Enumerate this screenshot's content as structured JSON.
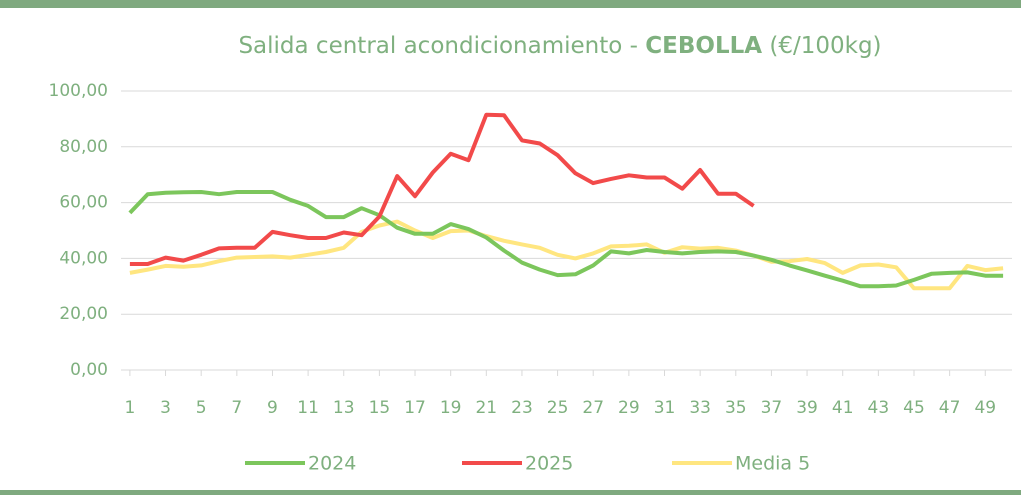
{
  "chart_data": {
    "type": "line",
    "title": [
      "Salida central acondicionamiento - ",
      "CEBOLLA",
      " (€/100kg)"
    ],
    "x": [
      1,
      2,
      3,
      4,
      5,
      6,
      7,
      8,
      9,
      10,
      11,
      12,
      13,
      14,
      15,
      16,
      17,
      18,
      19,
      20,
      21,
      22,
      23,
      24,
      25,
      26,
      27,
      28,
      29,
      30,
      31,
      32,
      33,
      34,
      35,
      36,
      37,
      38,
      39,
      40,
      41,
      42,
      43,
      44,
      45,
      46,
      47,
      48,
      49,
      50
    ],
    "xlim": [
      0.5,
      50.5
    ],
    "xticks": [
      1,
      3,
      5,
      7,
      9,
      11,
      13,
      15,
      17,
      19,
      21,
      23,
      25,
      27,
      29,
      31,
      33,
      35,
      37,
      39,
      41,
      43,
      45,
      47,
      49
    ],
    "ylim": [
      0,
      100
    ],
    "yticks": [
      {
        "value": 0,
        "label": "0,00"
      },
      {
        "value": 20,
        "label": "20,00"
      },
      {
        "value": 40,
        "label": "40,00"
      },
      {
        "value": 60,
        "label": "60,00"
      },
      {
        "value": 80,
        "label": "80,00"
      },
      {
        "value": 100,
        "label": "100,00"
      }
    ],
    "grid": true,
    "legend": "bottom",
    "series": [
      {
        "name": "2024",
        "color": "#7cc65c",
        "values": [
          56.3,
          63,
          63.5,
          63.7,
          63.8,
          63,
          63.8,
          63.8,
          63.8,
          61,
          58.8,
          54.8,
          54.8,
          58,
          55.5,
          51,
          48.8,
          48.8,
          52.3,
          50.5,
          47.5,
          42.8,
          38.5,
          36,
          34,
          34.3,
          37.5,
          42.5,
          41.8,
          43,
          42.3,
          41.8,
          42.3,
          42.5,
          42.3,
          41,
          39.5,
          37.5,
          35.7,
          33.8,
          32,
          30,
          30,
          30.3,
          32.3,
          34.5,
          34.8,
          35,
          33.8,
          33.8
        ]
      },
      {
        "name": "2025",
        "color": "#f24a4a",
        "values": [
          38,
          38,
          40.3,
          39.2,
          41.3,
          43.6,
          43.8,
          43.8,
          49.5,
          48.3,
          47.3,
          47.3,
          49.3,
          48.3,
          55,
          69.5,
          62.3,
          70.8,
          77.5,
          75.2,
          91.5,
          91.3,
          82.3,
          81.2,
          77,
          70.5,
          67,
          68.5,
          69.8,
          69,
          69,
          65,
          71.7,
          63.2,
          63.2,
          58.8,
          null,
          null,
          null,
          null,
          null,
          null,
          null,
          null,
          null,
          null,
          null,
          null,
          null,
          null
        ]
      },
      {
        "name": "Media 5",
        "color": "#ffe680",
        "values": [
          34.8,
          36,
          37.3,
          37,
          37.5,
          39,
          40.3,
          40.5,
          40.7,
          40.3,
          41.3,
          42.3,
          43.8,
          49.5,
          51.8,
          53.2,
          50,
          47.3,
          49.8,
          50,
          48,
          46.3,
          45,
          43.8,
          41.3,
          40,
          41.8,
          44.3,
          44.5,
          45,
          42,
          44,
          43.5,
          43.8,
          42.8,
          41,
          38.8,
          39,
          39.8,
          38.3,
          34.8,
          37.5,
          37.8,
          36.8,
          29.3,
          29.3,
          29.3,
          37.3,
          35.8,
          36.5
        ]
      }
    ]
  }
}
